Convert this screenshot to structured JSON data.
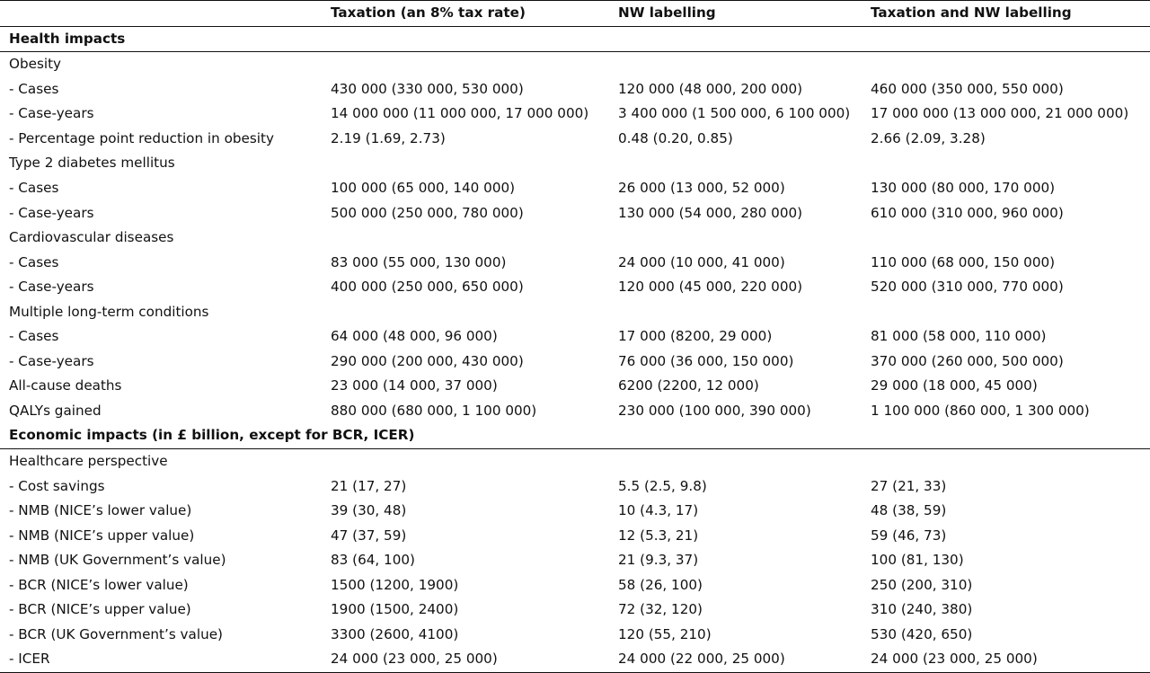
{
  "header": {
    "col0": "",
    "col1": "Taxation (an 8% tax rate)",
    "col2": "NW labelling",
    "col3": "Taxation and NW labelling"
  },
  "rows": [
    {
      "type": "section",
      "label": "Health impacts"
    },
    {
      "type": "group",
      "label": "Obesity"
    },
    {
      "type": "data",
      "label": " - Cases",
      "v1": "430 000 (330 000, 530 000)",
      "v2": "120 000 (48 000, 200 000)",
      "v3": "460 000 (350 000, 550 000)"
    },
    {
      "type": "data",
      "label": " - Case-years",
      "v1": "14 000 000 (11 000 000, 17 000 000)",
      "v2": "3 400 000 (1 500 000, 6 100 000)",
      "v3": "17 000 000 (13 000 000, 21 000 000)"
    },
    {
      "type": "data",
      "label": " - Percentage point reduction in obesity",
      "v1": "2.19 (1.69, 2.73)",
      "v2": "0.48 (0.20, 0.85)",
      "v3": "2.66 (2.09, 3.28)"
    },
    {
      "type": "group",
      "label": "Type 2 diabetes mellitus"
    },
    {
      "type": "data",
      "label": " - Cases",
      "v1": "100 000 (65 000, 140 000)",
      "v2": "26 000 (13 000, 52 000)",
      "v3": "130 000 (80 000, 170 000)"
    },
    {
      "type": "data",
      "label": " - Case-years",
      "v1": "500 000 (250 000, 780 000)",
      "v2": "130 000 (54 000, 280 000)",
      "v3": "610 000 (310 000, 960 000)"
    },
    {
      "type": "group",
      "label": "Cardiovascular diseases"
    },
    {
      "type": "data",
      "label": " - Cases",
      "v1": "83 000 (55 000, 130 000)",
      "v2": "24 000 (10 000, 41 000)",
      "v3": "110 000 (68 000, 150 000)"
    },
    {
      "type": "data",
      "label": " - Case-years",
      "v1": "400 000 (250 000, 650 000)",
      "v2": "120 000 (45 000, 220 000)",
      "v3": "520 000 (310 000, 770 000)"
    },
    {
      "type": "group",
      "label": "Multiple long-term conditions"
    },
    {
      "type": "data",
      "label": " - Cases",
      "v1": "64 000 (48 000, 96 000)",
      "v2": "17 000 (8200, 29 000)",
      "v3": "81 000 (58 000, 110 000)"
    },
    {
      "type": "data",
      "label": " - Case-years",
      "v1": "290 000 (200 000, 430 000)",
      "v2": "76 000 (36 000, 150 000)",
      "v3": "370 000 (260 000, 500 000)"
    },
    {
      "type": "data",
      "label": "All-cause deaths",
      "v1": "23 000 (14 000, 37 000)",
      "v2": "6200 (2200, 12 000)",
      "v3": "29 000 (18 000, 45 000)"
    },
    {
      "type": "data",
      "label": "QALYs gained",
      "v1": "880 000 (680 000, 1 100 000)",
      "v2": "230 000 (100 000, 390 000)",
      "v3": "1 100 000 (860 000, 1 300 000)"
    },
    {
      "type": "section",
      "label": "Economic impacts (in £ billion, except for BCR, ICER)"
    },
    {
      "type": "group",
      "label": "Healthcare perspective"
    },
    {
      "type": "data",
      "label": " - Cost savings",
      "v1": "21 (17, 27)",
      "v2": "5.5 (2.5, 9.8)",
      "v3": "27 (21, 33)"
    },
    {
      "type": "data",
      "label": " - NMB (NICE’s lower value)",
      "v1": "39 (30, 48)",
      "v2": "10 (4.3, 17)",
      "v3": "48 (38, 59)"
    },
    {
      "type": "data",
      "label": " - NMB (NICE’s upper value)",
      "v1": "47 (37, 59)",
      "v2": "12 (5.3, 21)",
      "v3": "59 (46, 73)"
    },
    {
      "type": "data",
      "label": " - NMB (UK Government’s value)",
      "v1": "83 (64, 100)",
      "v2": "21 (9.3, 37)",
      "v3": "100 (81, 130)"
    },
    {
      "type": "data",
      "label": " - BCR (NICE’s lower value)",
      "v1": "1500 (1200, 1900)",
      "v2": "58 (26, 100)",
      "v3": "250 (200, 310)"
    },
    {
      "type": "data",
      "label": " - BCR (NICE’s upper value)",
      "v1": "1900 (1500, 2400)",
      "v2": "72 (32, 120)",
      "v3": "310 (240, 380)"
    },
    {
      "type": "data",
      "label": " - BCR (UK Government’s value)",
      "v1": "3300 (2600, 4100)",
      "v2": "120 (55, 210)",
      "v3": "530 (420, 650)"
    },
    {
      "type": "data",
      "label": " - ICER",
      "v1": "24 000 (23 000, 25 000)",
      "v2": "24 000 (22 000, 25 000)",
      "v3": "24 000 (23 000, 25 000)"
    }
  ]
}
